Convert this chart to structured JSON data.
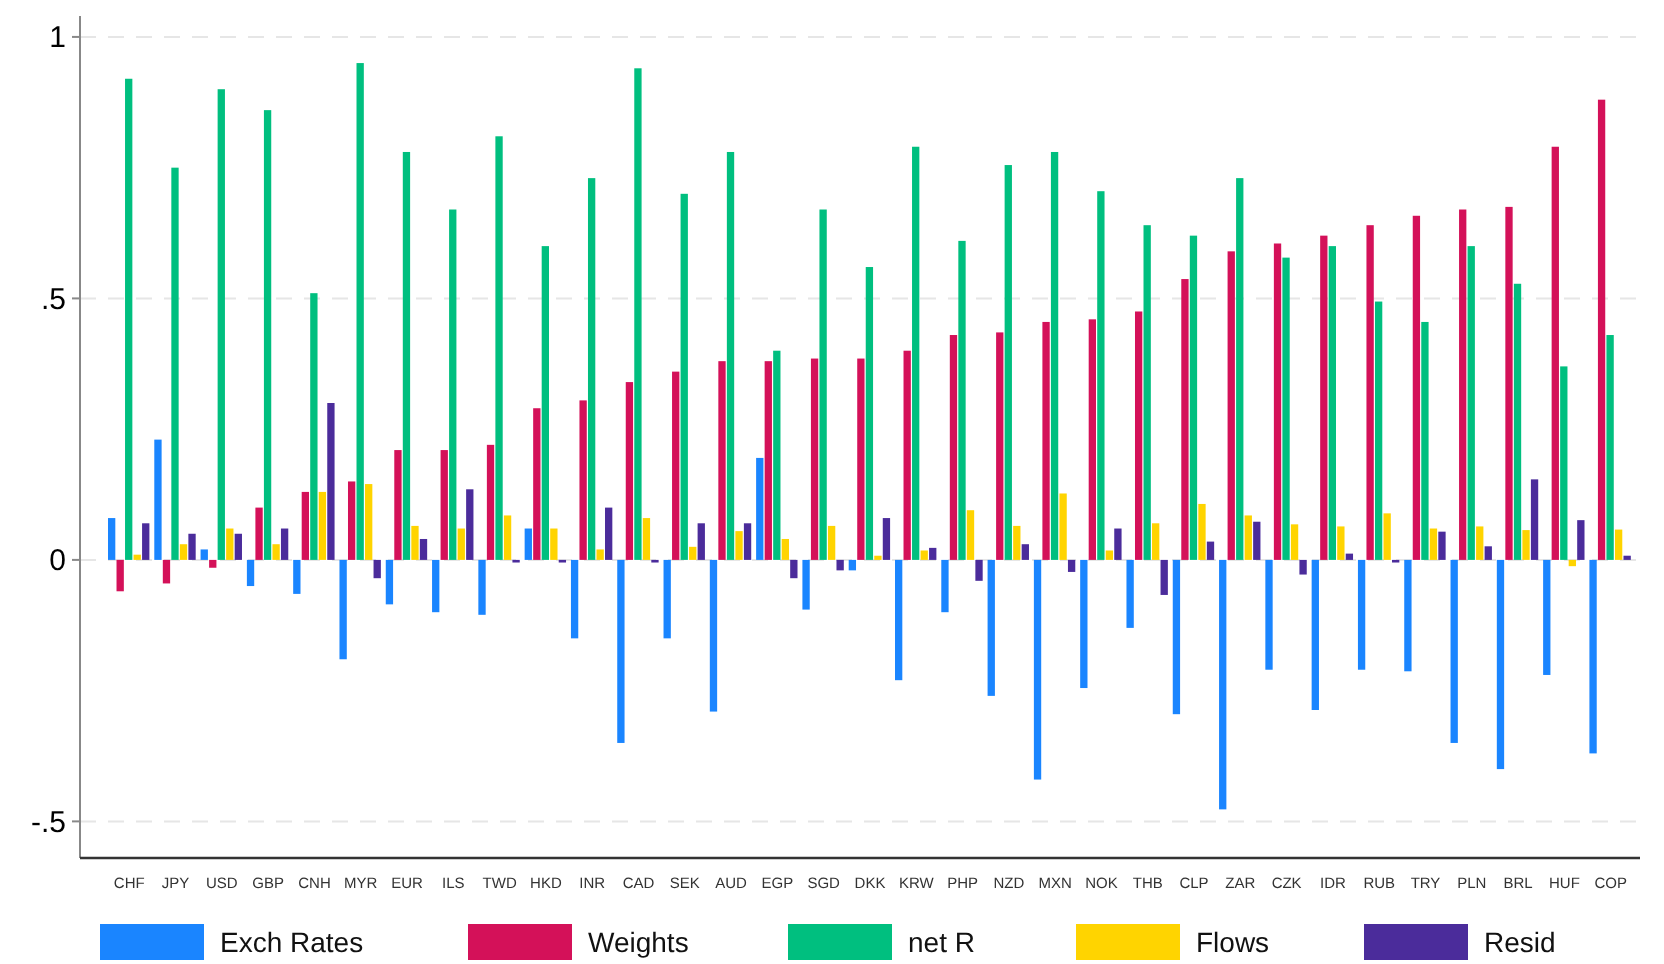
{
  "chart_data": {
    "type": "bar",
    "categories": [
      "CHF",
      "JPY",
      "USD",
      "GBP",
      "CNH",
      "MYR",
      "EUR",
      "ILS",
      "TWD",
      "HKD",
      "INR",
      "CAD",
      "SEK",
      "AUD",
      "EGP",
      "SGD",
      "DKK",
      "KRW",
      "PHP",
      "NZD",
      "MXN",
      "NOK",
      "THB",
      "CLP",
      "ZAR",
      "CZK",
      "IDR",
      "RUB",
      "TRY",
      "PLN",
      "BRL",
      "HUF",
      "COP"
    ],
    "series": [
      {
        "name": "Exch Rates",
        "color": "#1a85ff",
        "values": [
          0.08,
          0.23,
          0.02,
          -0.05,
          -0.065,
          -0.19,
          -0.085,
          -0.1,
          -0.105,
          0.06,
          -0.15,
          -0.35,
          -0.15,
          -0.29,
          0.195,
          -0.095,
          -0.02,
          -0.23,
          -0.1,
          -0.26,
          -0.42,
          -0.245,
          -0.13,
          -0.295,
          -0.477,
          -0.21,
          -0.287,
          -0.21,
          -0.213,
          -0.35,
          -0.4,
          -0.22,
          -0.37
        ]
      },
      {
        "name": "Weights",
        "color": "#d41159",
        "values": [
          -0.06,
          -0.045,
          -0.015,
          0.1,
          0.13,
          0.15,
          0.21,
          0.21,
          0.22,
          0.29,
          0.305,
          0.34,
          0.36,
          0.38,
          0.38,
          0.385,
          0.385,
          0.4,
          0.43,
          0.435,
          0.455,
          0.46,
          0.475,
          0.537,
          0.59,
          0.605,
          0.62,
          0.64,
          0.658,
          0.67,
          0.675,
          0.79,
          0.88
        ]
      },
      {
        "name": "net R",
        "color": "#00bf7f",
        "values": [
          0.92,
          0.75,
          0.9,
          0.86,
          0.51,
          0.95,
          0.78,
          0.67,
          0.81,
          0.6,
          0.73,
          0.94,
          0.7,
          0.78,
          0.4,
          0.67,
          0.56,
          0.79,
          0.61,
          0.755,
          0.78,
          0.705,
          0.64,
          0.62,
          0.73,
          0.578,
          0.6,
          0.494,
          0.455,
          0.6,
          0.528,
          0.37,
          0.43
        ]
      },
      {
        "name": "Flows",
        "color": "#ffd400",
        "values": [
          0.01,
          0.03,
          0.06,
          0.03,
          0.13,
          0.145,
          0.065,
          0.06,
          0.085,
          0.06,
          0.02,
          0.08,
          0.025,
          0.055,
          0.04,
          0.065,
          0.008,
          0.018,
          0.095,
          0.065,
          0.127,
          0.018,
          0.07,
          0.107,
          0.085,
          0.068,
          0.064,
          0.089,
          0.06,
          0.064,
          0.057,
          -0.012,
          0.058
        ]
      },
      {
        "name": "Resid",
        "color": "#4b2c9b",
        "values": [
          0.07,
          0.05,
          0.05,
          0.06,
          0.3,
          -0.035,
          0.04,
          0.135,
          -0.005,
          -0.005,
          0.1,
          -0.005,
          0.07,
          0.07,
          -0.035,
          -0.02,
          0.08,
          0.023,
          -0.04,
          0.03,
          -0.023,
          0.06,
          -0.067,
          0.035,
          0.073,
          -0.028,
          0.012,
          -0.005,
          0.054,
          0.026,
          0.154,
          0.076,
          0.008
        ]
      }
    ],
    "ylim": [
      -0.57,
      1.04
    ],
    "yticks": [
      {
        "value": -0.5,
        "label": "-.5"
      },
      0,
      {
        "value": 0.5,
        "label": ".5"
      },
      1
    ],
    "grid": "y",
    "legend": "bottom"
  }
}
